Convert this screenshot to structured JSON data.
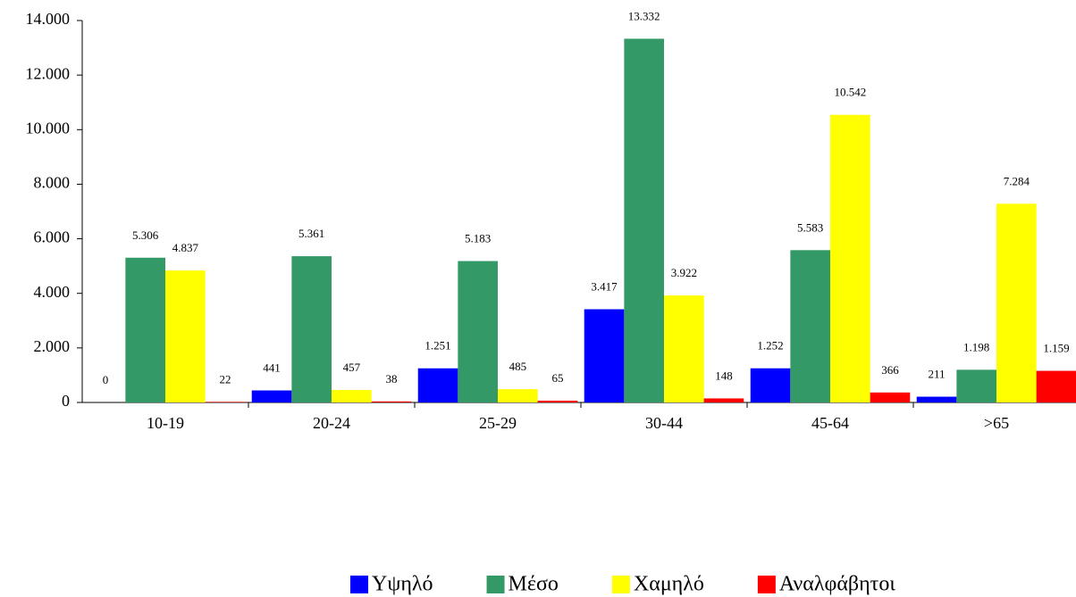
{
  "chart_data": {
    "type": "bar",
    "categories": [
      "10-19",
      "20-24",
      "25-29",
      "30-44",
      "45-64",
      ">65"
    ],
    "series": [
      {
        "name": "Υψηλό",
        "color": "#0000ff",
        "values": [
          0,
          441,
          1251,
          3417,
          1252,
          211
        ],
        "value_labels": [
          "0",
          "441",
          "1.251",
          "3.417",
          "1.252",
          "211"
        ]
      },
      {
        "name": "Μέσο",
        "color": "#339966",
        "values": [
          5306,
          5361,
          5183,
          13332,
          5583,
          1198
        ],
        "value_labels": [
          "5.306",
          "5.361",
          "5.183",
          "13.332",
          "5.583",
          "1.198"
        ]
      },
      {
        "name": "Χαμηλό",
        "color": "#ffff00",
        "values": [
          4837,
          457,
          485,
          3922,
          10542,
          7284
        ],
        "value_labels": [
          "4.837",
          "457",
          "485",
          "3.922",
          "10.542",
          "7.284"
        ]
      },
      {
        "name": "Αναλφάβητοι",
        "color": "#ff0000",
        "values": [
          22,
          38,
          65,
          148,
          366,
          1159
        ],
        "value_labels": [
          "22",
          "38",
          "65",
          "148",
          "366",
          "1.159"
        ]
      }
    ],
    "ylim": [
      0,
      14000
    ],
    "yticks": [
      0,
      {
        "value": 2000,
        "label": "2.000"
      },
      {
        "value": 4000,
        "label": "4.000"
      },
      {
        "value": 6000,
        "label": "6.000"
      },
      {
        "value": 8000,
        "label": "8.000"
      },
      {
        "value": 10000,
        "label": "10.000"
      },
      {
        "value": 12000,
        "label": "12.000"
      },
      {
        "value": 14000,
        "label": "14.000"
      }
    ],
    "legend": "bottom"
  }
}
